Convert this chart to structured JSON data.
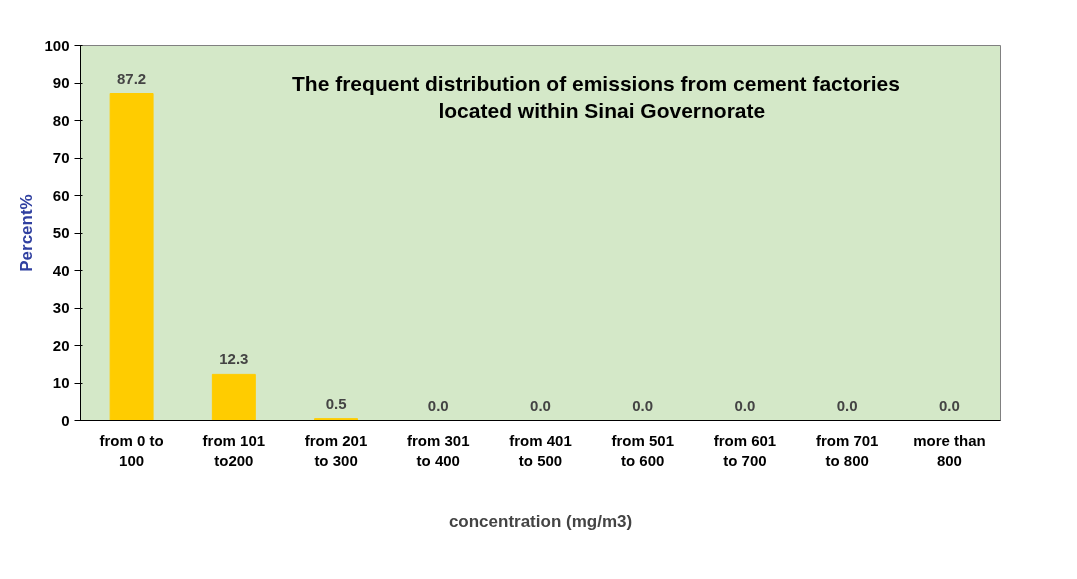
{
  "chart_data": {
    "type": "bar",
    "title": "The frequent distribution  of emissions from cement  factories\nlocated within Sinai Governorate",
    "xlabel": "concentration (mg/m3)",
    "ylabel": "Percent%",
    "categories": [
      "from 0 to\n100",
      "from 101\nto200",
      "from 201\nto 300",
      "from 301\nto 400",
      "from 401\nto 500",
      "from 501\nto 600",
      "from 601\nto 700",
      "from 701\nto 800",
      "more than\n800"
    ],
    "values": [
      87.2,
      12.3,
      0.5,
      0.0,
      0.0,
      0.0,
      0.0,
      0.0,
      0.0
    ],
    "value_labels": [
      "87.2",
      "12.3",
      "0.5",
      "0.0",
      "0.0",
      "0.0",
      "0.0",
      "0.0",
      "0.0"
    ],
    "color": "#ffcc00",
    "ylim": [
      0,
      100
    ],
    "yticks": [
      0,
      10,
      20,
      30,
      40,
      50,
      60,
      70,
      80,
      90,
      100
    ],
    "grid": false
  }
}
